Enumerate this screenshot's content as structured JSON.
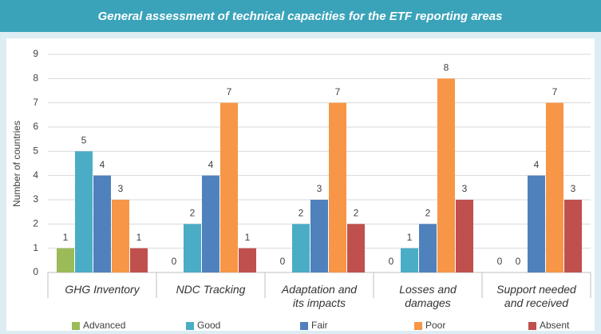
{
  "chart_data": {
    "type": "bar",
    "title": "General assessment of technical capacities for the ETF reporting areas",
    "y_label": "Number of countries",
    "categories": [
      "GHG Inventory",
      "NDC Tracking",
      "Adaptation and its impacts",
      "Losses and damages",
      "Support needed and received"
    ],
    "series": [
      {
        "name": "Advanced",
        "color": "#9bbb59",
        "values": [
          1,
          0,
          0,
          0,
          0
        ]
      },
      {
        "name": "Good",
        "color": "#4bacc6",
        "values": [
          5,
          2,
          2,
          1,
          0
        ]
      },
      {
        "name": "Fair",
        "color": "#4f81bd",
        "values": [
          4,
          4,
          3,
          2,
          4
        ]
      },
      {
        "name": "Poor",
        "color": "#f79646",
        "values": [
          3,
          7,
          7,
          8,
          7
        ]
      },
      {
        "name": "Absent",
        "color": "#c0504d",
        "values": [
          1,
          1,
          2,
          3,
          3
        ]
      }
    ],
    "ylim": [
      0,
      9
    ],
    "yticks": [
      0,
      1,
      2,
      3,
      4,
      5,
      6,
      7,
      8,
      9
    ],
    "grid": true,
    "legend": "bottom"
  }
}
